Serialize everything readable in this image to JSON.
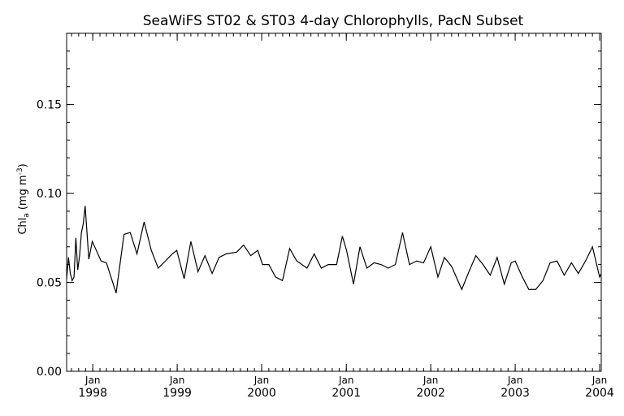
{
  "chart_data": {
    "type": "line",
    "title": "SeaWiFS ST02 & ST03 4-day Chlorophylls, PacN Subset",
    "ylabel_main": "Chl",
    "ylabel_sub": "a",
    "ylabel_units": "(mg m",
    "ylabel_exp": "-3",
    "ylabel_close": ")",
    "ylim": [
      0.0,
      0.19
    ],
    "y_ticks": [
      {
        "value": 0.0,
        "label": "0.00"
      },
      {
        "value": 0.05,
        "label": "0.05"
      },
      {
        "value": 0.1,
        "label": "0.10"
      },
      {
        "value": 0.15,
        "label": "0.15"
      }
    ],
    "xlim": [
      "1997-09-10",
      "2004-01-08"
    ],
    "x_ticks": [
      {
        "date": "1998-01-01",
        "month": "Jan",
        "year": "1998"
      },
      {
        "date": "1999-01-01",
        "month": "Jan",
        "year": "1999"
      },
      {
        "date": "2000-01-01",
        "month": "Jan",
        "year": "2000"
      },
      {
        "date": "2001-01-01",
        "month": "Jan",
        "year": "2001"
      },
      {
        "date": "2002-01-01",
        "month": "Jan",
        "year": "2002"
      },
      {
        "date": "2003-01-01",
        "month": "Jan",
        "year": "2003"
      },
      {
        "date": "2004-01-01",
        "month": "Jan",
        "year": "2004"
      }
    ],
    "series": [
      {
        "x": [
          "1997-09-10",
          "1997-09-18",
          "1997-09-26",
          "1997-10-04",
          "1997-10-12",
          "1997-10-20",
          "1997-10-28",
          "1997-11-05",
          "1997-11-13",
          "1997-11-21",
          "1997-11-29",
          "1997-12-07",
          "1997-12-15",
          "1997-12-30",
          "1998-02-06",
          "1998-03-01",
          "1998-04-12",
          "1998-05-16",
          "1998-06-12",
          "1998-07-11",
          "1998-08-11",
          "1998-09-11",
          "1998-10-11",
          "1998-11-11",
          "1998-12-11",
          "1998-12-30",
          "1999-01-31",
          "1999-03-01",
          "1999-04-01",
          "1999-05-01",
          "1999-06-01",
          "1999-07-01",
          "1999-08-01",
          "1999-09-15",
          "1999-10-15",
          "1999-11-15",
          "1999-12-15",
          "2000-01-05",
          "2000-02-01",
          "2000-03-01",
          "2000-03-31",
          "2000-05-01",
          "2000-06-01",
          "2000-07-15",
          "2000-08-15",
          "2000-09-15",
          "2000-10-15",
          "2000-11-20",
          "2000-12-15",
          "2001-01-02",
          "2001-02-01",
          "2001-03-01",
          "2001-03-31",
          "2001-05-01",
          "2001-06-01",
          "2001-07-01",
          "2001-08-01",
          "2001-09-01",
          "2001-10-01",
          "2001-11-01",
          "2001-12-01",
          "2002-01-01",
          "2002-02-01",
          "2002-03-01",
          "2002-04-01",
          "2002-05-15",
          "2002-06-15",
          "2002-07-15",
          "2002-08-15",
          "2002-09-15",
          "2002-10-15",
          "2002-11-15",
          "2002-12-15",
          "2003-01-01",
          "2003-02-01",
          "2003-03-01",
          "2003-03-31",
          "2003-05-01",
          "2003-06-01",
          "2003-07-01",
          "2003-08-01",
          "2003-09-01",
          "2003-10-01",
          "2003-11-01",
          "2003-12-01",
          "2004-01-01",
          "2004-01-08"
        ],
        "y": [
          0.052,
          0.064,
          0.055,
          0.051,
          0.053,
          0.075,
          0.057,
          0.065,
          0.078,
          0.083,
          0.093,
          0.078,
          0.063,
          0.073,
          0.062,
          0.061,
          0.044,
          0.077,
          0.078,
          0.066,
          0.084,
          0.068,
          0.058,
          0.062,
          0.066,
          0.068,
          0.052,
          0.073,
          0.056,
          0.065,
          0.055,
          0.064,
          0.066,
          0.067,
          0.071,
          0.065,
          0.068,
          0.06,
          0.06,
          0.053,
          0.051,
          0.069,
          0.062,
          0.058,
          0.066,
          0.058,
          0.06,
          0.06,
          0.076,
          0.068,
          0.049,
          0.07,
          0.058,
          0.061,
          0.06,
          0.058,
          0.06,
          0.078,
          0.06,
          0.062,
          0.061,
          0.07,
          0.053,
          0.064,
          0.059,
          0.046,
          0.056,
          0.065,
          0.06,
          0.054,
          0.064,
          0.049,
          0.061,
          0.062,
          0.053,
          0.046,
          0.046,
          0.051,
          0.061,
          0.062,
          0.054,
          0.061,
          0.055,
          0.062,
          0.07,
          0.053,
          0.055
        ]
      }
    ]
  }
}
